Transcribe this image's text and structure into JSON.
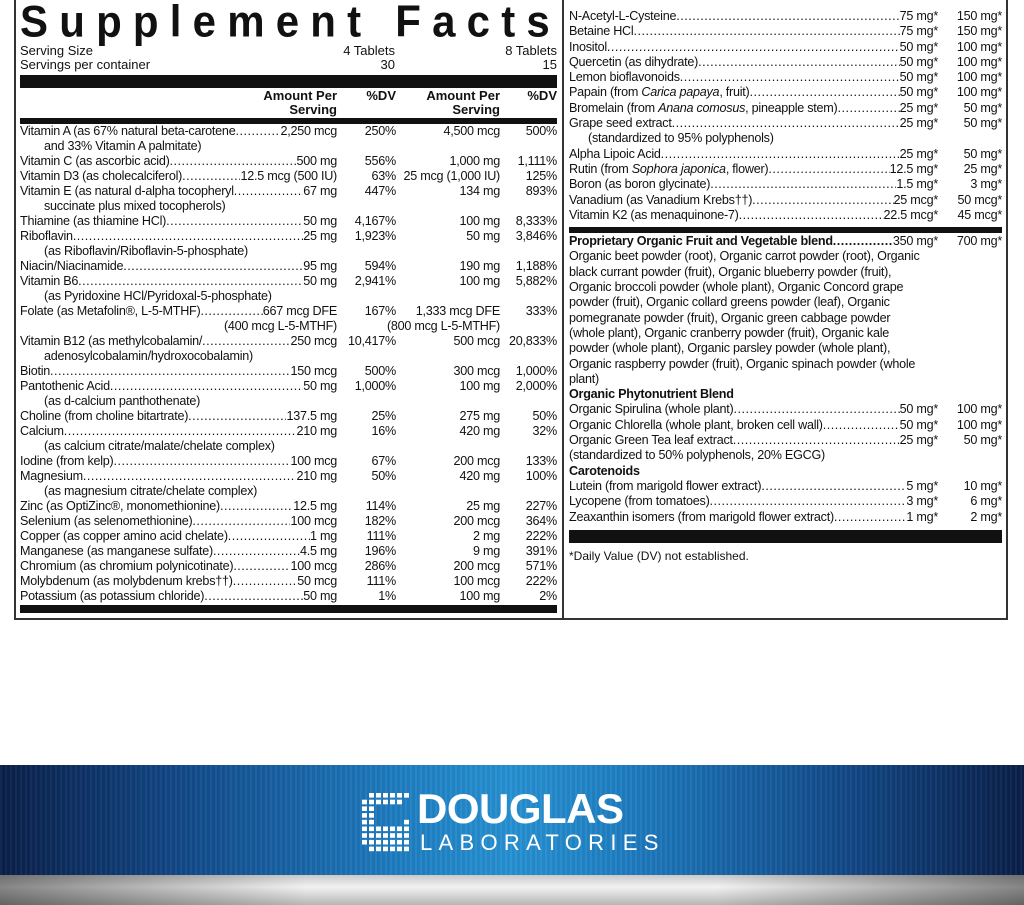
{
  "title": "Supplement Facts",
  "serving": {
    "size_label": "Serving Size",
    "size_1": "4 Tablets",
    "size_2": "8 Tablets",
    "per_container_label": "Servings per container",
    "per_container_1": "30",
    "per_container_2": "15"
  },
  "headers": {
    "amount_line1": "Amount Per",
    "amount_line2": "Serving",
    "dv": "%DV"
  },
  "left_rows": [
    {
      "name": "Vitamin A (as 67% natural beta-carotene",
      "amt1": "2,250 mcg",
      "dv1": "250%",
      "amt2": "4,500 mcg",
      "dv2": "500%",
      "sub": "and 33% Vitamin A palmitate)"
    },
    {
      "name": "Vitamin C (as ascorbic acid)",
      "amt1": "500 mg",
      "dv1": "556%",
      "amt2": "1,000 mg",
      "dv2": "1,111%"
    },
    {
      "name": "Vitamin D3 (as cholecalciferol)",
      "amt1": "12.5 mcg (500 IU)",
      "dv1": "63%",
      "amt2": "25 mcg (1,000 IU)",
      "dv2": "125%"
    },
    {
      "name": "Vitamin E (as natural d-alpha tocopheryl",
      "amt1": "67 mg",
      "dv1": "447%",
      "amt2": "134 mg",
      "dv2": "893%",
      "sub": "succinate plus mixed tocopherols)"
    },
    {
      "name": "Thiamine (as thiamine HCl)",
      "amt1": "50 mg",
      "dv1": "4,167%",
      "amt2": "100 mg",
      "dv2": "8,333%"
    },
    {
      "name": "Riboflavin",
      "amt1": "25 mg",
      "dv1": "1,923%",
      "amt2": "50 mg",
      "dv2": "3,846%",
      "sub": "(as Riboflavin/Riboflavin-5-phosphate)"
    },
    {
      "name": "Niacin/Niacinamide",
      "amt1": "95 mg",
      "dv1": "594%",
      "amt2": "190 mg",
      "dv2": "1,188%"
    },
    {
      "name": "Vitamin B6",
      "amt1": "50 mg",
      "dv1": "2,941%",
      "amt2": "100 mg",
      "dv2": "5,882%",
      "sub": "(as Pyridoxine HCl/Pyridoxal-5-phosphate)"
    },
    {
      "name": "Folate (as Metafolin®, L-5-MTHF)",
      "amt1": "667 mcg DFE",
      "dv1": "167%",
      "amt2": "1,333 mcg DFE",
      "dv2": "333%",
      "sub_amt1": "(400 mcg L-5-MTHF)",
      "sub_amt2": "(800 mcg L-5-MTHF)"
    },
    {
      "name": "Vitamin B12 (as methylcobalamin/",
      "amt1": "250 mcg",
      "dv1": "10,417%",
      "amt2": "500 mcg",
      "dv2": "20,833%",
      "sub": "adenosylcobalamin/hydroxocobalamin)"
    },
    {
      "name": "Biotin",
      "amt1": "150 mcg",
      "dv1": "500%",
      "amt2": "300 mcg",
      "dv2": "1,000%"
    },
    {
      "name": "Pantothenic Acid",
      "amt1": "50 mg",
      "dv1": "1,000%",
      "amt2": "100 mg",
      "dv2": "2,000%",
      "sub": "(as d-calcium panthothenate)"
    },
    {
      "name": "Choline (from choline bitartrate)",
      "amt1": "137.5 mg",
      "dv1": "25%",
      "amt2": "275 mg",
      "dv2": "50%"
    },
    {
      "name": "Calcium",
      "amt1": "210 mg",
      "dv1": "16%",
      "amt2": "420 mg",
      "dv2": "32%",
      "sub": "(as calcium citrate/malate/chelate complex)"
    },
    {
      "name": "Iodine (from kelp)",
      "amt1": "100 mcg",
      "dv1": "67%",
      "amt2": "200 mcg",
      "dv2": "133%"
    },
    {
      "name": "Magnesium",
      "amt1": "210 mg",
      "dv1": "50%",
      "amt2": "420 mg",
      "dv2": "100%",
      "sub": "(as magnesium citrate/chelate complex)"
    },
    {
      "name": "Zinc (as OptiZinc®, monomethionine)",
      "amt1": "12.5 mg",
      "dv1": "114%",
      "amt2": "25 mg",
      "dv2": "227%"
    },
    {
      "name": "Selenium (as selenomethionine)",
      "amt1": "100 mcg",
      "dv1": "182%",
      "amt2": "200 mcg",
      "dv2": "364%"
    },
    {
      "name": "Copper (as copper amino acid chelate)",
      "amt1": "1 mg",
      "dv1": "111%",
      "amt2": "2 mg",
      "dv2": "222%"
    },
    {
      "name": "Manganese (as manganese sulfate)",
      "amt1": "4.5 mg",
      "dv1": "196%",
      "amt2": "9 mg",
      "dv2": "391%"
    },
    {
      "name": "Chromium (as chromium polynicotinate)",
      "amt1": "100 mcg",
      "dv1": "286%",
      "amt2": "200 mcg",
      "dv2": "571%"
    },
    {
      "name": "Molybdenum (as molybdenum krebs††)",
      "amt1": "50 mcg",
      "dv1": "111%",
      "amt2": "100 mcg",
      "dv2": "222%"
    },
    {
      "name": "Potassium (as potassium chloride)",
      "amt1": "50 mg",
      "dv1": "1%",
      "amt2": "100 mg",
      "dv2": "2%"
    }
  ],
  "right_rows": [
    {
      "name": "N-Acetyl-L-Cysteine",
      "amt1": "75 mg*",
      "amt2": "150 mg*"
    },
    {
      "name": "Betaine HCl",
      "amt1": "75 mg*",
      "amt2": "150 mg*"
    },
    {
      "name": "Inositol",
      "amt1": "50 mg*",
      "amt2": "100 mg*"
    },
    {
      "name": "Quercetin (as dihydrate)",
      "amt1": "50 mg*",
      "amt2": "100 mg*"
    },
    {
      "name": "Lemon bioflavonoids",
      "amt1": "50 mg*",
      "amt2": "100 mg*"
    },
    {
      "name": "Papain (from ",
      "italic": "Carica papaya",
      "name_end": ", fruit)",
      "amt1": "50 mg*",
      "amt2": "100 mg*"
    },
    {
      "name": "Bromelain (from ",
      "italic": "Anana comosus",
      "name_end": ", pineapple stem)",
      "amt1": "25 mg*",
      "amt2": "50 mg*"
    },
    {
      "name": "Grape seed extract",
      "amt1": "25 mg*",
      "amt2": "50 mg*",
      "sub": "(standardized to 95% polyphenols)"
    },
    {
      "name": "Alpha Lipoic Acid",
      "amt1": "25 mg*",
      "amt2": "50 mg*"
    },
    {
      "name": "Rutin (from ",
      "italic": "Sophora japonica",
      "name_end": ", flower)",
      "amt1": "12.5 mg*",
      "amt2": "25 mg*"
    },
    {
      "name": "Boron (as boron glycinate)",
      "amt1": "1.5 mg*",
      "amt2": "3 mg*"
    },
    {
      "name": "Vanadium (as Vanadium Krebs††)",
      "amt1": "25 mcg*",
      "amt2": "50 mcg*"
    },
    {
      "name": "Vitamin K2 (as menaquinone-7)",
      "amt1": "22.5 mcg*",
      "amt2": "45 mcg*"
    }
  ],
  "fruit_blend": {
    "name": "Proprietary Organic Fruit and Vegetable blend",
    "amt1": "350 mg*",
    "amt2": "700 mg*",
    "ingredients": "Organic beet powder (root), Organic carrot powder (root), Organic black currant powder (fruit), Organic blueberry powder (fruit), Organic broccoli powder (whole plant), Organic Concord grape powder (fruit), Organic collard greens powder (leaf), Organic pomegranate powder (fruit), Organic green cabbage powder (whole plant), Organic cranberry powder (fruit), Organic kale powder (whole plant), Organic parsley powder (whole plant), Organic raspberry powder (fruit), Organic spinach powder (whole plant)"
  },
  "phyto_blend": {
    "title": "Organic Phytonutrient Blend",
    "rows": [
      {
        "name": "Organic Spirulina (whole plant)",
        "amt1": "50 mg*",
        "amt2": "100 mg*"
      },
      {
        "name": "Organic Chlorella (whole plant, broken cell wall)",
        "amt1": "50 mg*",
        "amt2": "100 mg*"
      },
      {
        "name": "Organic Green Tea leaf extract",
        "amt1": "25 mg*",
        "amt2": "50 mg*",
        "sub": "(standardized to 50% polyphenols, 20% EGCG)"
      }
    ]
  },
  "carotenoids": {
    "title": "Carotenoids",
    "rows": [
      {
        "name": "Lutein (from marigold flower extract)",
        "amt1": "5 mg*",
        "amt2": "10 mg*"
      },
      {
        "name": "Lycopene (from tomatoes)",
        "amt1": "3 mg*",
        "amt2": "6 mg*"
      },
      {
        "name": "Zeaxanthin isomers (from marigold flower extract)",
        "amt1": "1 mg*",
        "amt2": "2 mg*"
      }
    ]
  },
  "footnote": "*Daily Value (DV) not established.",
  "brand": {
    "line1": "DOUGLAS",
    "line2": "LABORATORIES"
  },
  "colors": {
    "banner_blue": "#2791d2",
    "banner_dark": "#0a1f48",
    "text": "#111111"
  }
}
